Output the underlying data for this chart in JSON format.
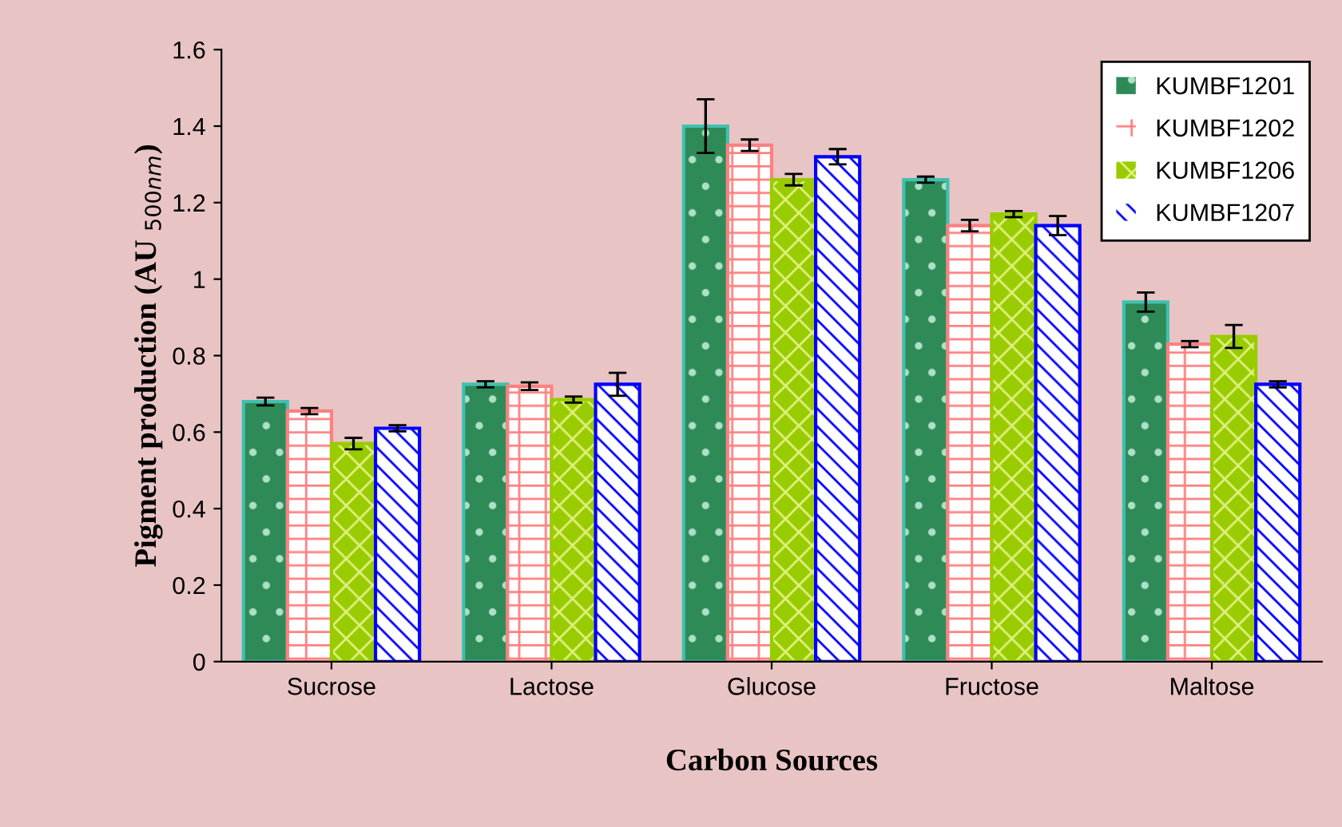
{
  "chart_data": {
    "type": "bar",
    "xlabel": "Carbon Sources",
    "ylabel": "Pigment production (AU $_{500nm}$)",
    "categories": [
      "Sucrose",
      "Lactose",
      "Glucose",
      "Fructose",
      "Maltose"
    ],
    "ylim": [
      0,
      1.6
    ],
    "yticks": [
      0,
      0.2,
      0.4,
      0.6,
      0.8,
      1,
      1.2,
      1.4,
      1.6
    ],
    "grid": false,
    "legend": "top right",
    "series": [
      {
        "name": "KUMBF1201",
        "color": "#2e8b57",
        "values": [
          0.68,
          0.725,
          1.4,
          1.26,
          0.94
        ],
        "errors": [
          0.01,
          0.008,
          0.07,
          0.008,
          0.025
        ]
      },
      {
        "name": "KUMBF1202",
        "color": "#ff8080",
        "values": [
          0.655,
          0.72,
          1.35,
          1.14,
          0.83
        ],
        "errors": [
          0.008,
          0.01,
          0.015,
          0.015,
          0.008
        ]
      },
      {
        "name": "KUMBF1206",
        "color": "#99cc00",
        "values": [
          0.57,
          0.685,
          1.26,
          1.17,
          0.85
        ],
        "errors": [
          0.015,
          0.008,
          0.015,
          0.008,
          0.03
        ]
      },
      {
        "name": "KUMBF1207",
        "color": "#0000ff",
        "values": [
          0.61,
          0.725,
          1.32,
          1.14,
          0.725
        ],
        "errors": [
          0.008,
          0.03,
          0.02,
          0.025,
          0.008
        ]
      }
    ]
  }
}
